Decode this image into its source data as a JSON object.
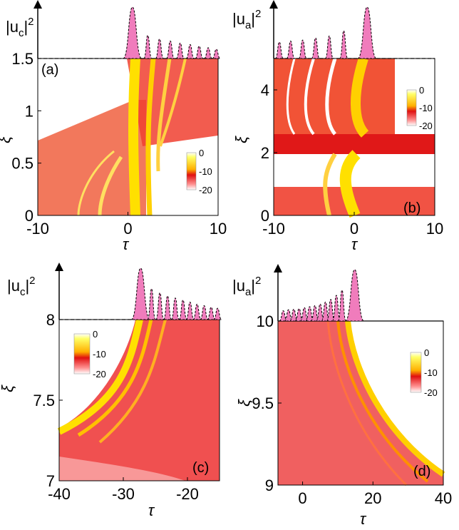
{
  "chart_data": [
    {
      "type": "heatmap",
      "panel_label": "(a)",
      "profile_label": {
        "main": "|u",
        "sub": "c",
        "sup": "2",
        "close": "|"
      },
      "xlabel": "τ",
      "ylabel": "ξ",
      "xlim": [
        -10,
        10
      ],
      "ylim": [
        0,
        1.5
      ],
      "xticks": [
        -10,
        0,
        10
      ],
      "yticks": [
        0,
        0.5,
        1,
        1.5
      ],
      "ytick_labels": [
        "0",
        "0.5",
        "1",
        "1.5"
      ],
      "colorbar": {
        "ticks": [
          "0",
          "-10",
          "-20"
        ],
        "range": [
          -20,
          0
        ],
        "placement": "right-middle"
      },
      "profile_series": {
        "name": "",
        "peaks_tau": [
          0.5,
          2.2,
          3.5,
          4.7,
          5.8,
          6.9,
          7.9,
          8.9,
          9.8
        ],
        "peaks_height": [
          1.0,
          0.45,
          0.38,
          0.34,
          0.3,
          0.27,
          0.24,
          0.21,
          0.18
        ]
      }
    },
    {
      "type": "heatmap",
      "panel_label": "(b)",
      "profile_label": {
        "main": "|u",
        "sub": "a",
        "sup": "2",
        "close": "|"
      },
      "xlabel": "τ",
      "ylabel": "ξ",
      "xlim": [
        -10,
        10
      ],
      "ylim": [
        0,
        5
      ],
      "xticks": [
        -10,
        0,
        10
      ],
      "yticks": [
        0,
        2,
        4
      ],
      "ytick_labels": [
        "0",
        "2",
        "4"
      ],
      "colorbar": {
        "ticks": [
          "0",
          "-10",
          "-20"
        ],
        "range": [
          -20,
          0
        ],
        "placement": "top-right"
      },
      "profile_series": {
        "name": "",
        "peaks_tau": [
          -9.3,
          -7.9,
          -6.4,
          -4.8,
          -3.1,
          -1.3,
          1.6
        ],
        "peaks_height": [
          0.32,
          0.34,
          0.36,
          0.4,
          0.44,
          0.54,
          1.0
        ]
      }
    },
    {
      "type": "heatmap",
      "panel_label": "(c)",
      "profile_label": {
        "main": "|u",
        "sub": "c",
        "sup": "2",
        "close": "|"
      },
      "xlabel": "τ",
      "ylabel": "ξ",
      "xlim": [
        -40,
        -15
      ],
      "ylim": [
        7,
        8
      ],
      "xticks": [
        -40,
        -30,
        -20
      ],
      "yticks": [
        7,
        7.5,
        8
      ],
      "ytick_labels": [
        "7",
        "7.5",
        "8"
      ],
      "colorbar": {
        "ticks": [
          "0",
          "-10",
          "-20"
        ],
        "range": [
          -20,
          0
        ],
        "placement": "top-left"
      },
      "profile_series": {
        "name": "",
        "peaks_tau": [
          -27.3,
          -25.6,
          -24.3,
          -23.1,
          -21.9,
          -20.7,
          -19.6,
          -18.5,
          -17.4,
          -16.3,
          -15.3
        ],
        "peaks_height": [
          1.0,
          0.6,
          0.52,
          0.46,
          0.42,
          0.38,
          0.34,
          0.3,
          0.27,
          0.24,
          0.22
        ]
      }
    },
    {
      "type": "heatmap",
      "panel_label": "(d)",
      "profile_label": {
        "main": "|u",
        "sub": "a",
        "sup": "2",
        "close": "|"
      },
      "xlabel": "τ",
      "ylabel": "ξ",
      "xlim": [
        -7,
        40
      ],
      "ylim": [
        9,
        10
      ],
      "xticks": [
        0,
        20,
        40
      ],
      "yticks": [
        9,
        9.5,
        10
      ],
      "ytick_labels": [
        "9",
        "9.5",
        "10"
      ],
      "colorbar": {
        "ticks": [
          "0",
          "-10",
          "-20"
        ],
        "range": [
          -20,
          0
        ],
        "placement": "right-middle"
      },
      "profile_series": {
        "name": "",
        "peaks_tau": [
          -5.5,
          -4,
          -2.5,
          -1,
          0.5,
          2,
          3.5,
          5,
          6.5,
          8,
          9.6,
          11.2,
          14.8
        ],
        "peaks_height": [
          0.2,
          0.22,
          0.23,
          0.24,
          0.26,
          0.28,
          0.3,
          0.33,
          0.37,
          0.42,
          0.5,
          0.6,
          1.0
        ]
      }
    }
  ]
}
